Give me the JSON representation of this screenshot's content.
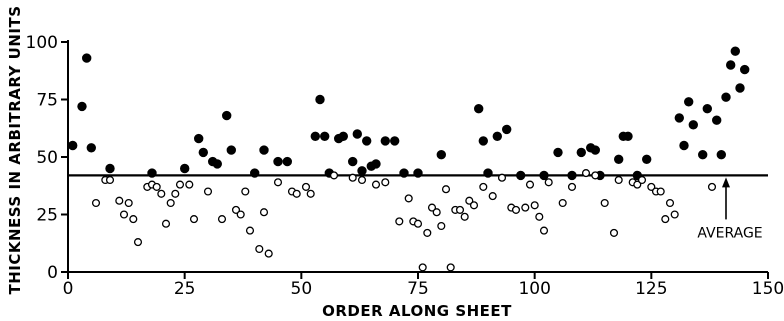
{
  "chart_data": {
    "type": "scatter",
    "title": "",
    "xlabel": "ORDER ALONG SHEET",
    "ylabel": "THICKNESS IN ARBITRARY UNITS",
    "xlim": [
      0,
      150
    ],
    "ylim": [
      0,
      100
    ],
    "x_ticks": [
      0,
      25,
      50,
      75,
      100,
      125,
      150
    ],
    "y_ticks": [
      0,
      25,
      50,
      75,
      100
    ],
    "grid": false,
    "reference_line": {
      "y": 42,
      "label": "AVERAGE"
    },
    "series": [
      {
        "marker": "filled-circle",
        "color": "#000000",
        "points": [
          [
            1,
            55
          ],
          [
            3,
            72
          ],
          [
            4,
            93
          ],
          [
            5,
            54
          ],
          [
            9,
            45
          ],
          [
            18,
            43
          ],
          [
            25,
            45
          ],
          [
            28,
            58
          ],
          [
            29,
            52
          ],
          [
            31,
            48
          ],
          [
            32,
            47
          ],
          [
            34,
            68
          ],
          [
            35,
            53
          ],
          [
            40,
            43
          ],
          [
            42,
            53
          ],
          [
            45,
            48
          ],
          [
            47,
            48
          ],
          [
            53,
            59
          ],
          [
            54,
            75
          ],
          [
            55,
            59
          ],
          [
            56,
            43
          ],
          [
            58,
            58
          ],
          [
            59,
            59
          ],
          [
            61,
            48
          ],
          [
            62,
            60
          ],
          [
            63,
            44
          ],
          [
            64,
            57
          ],
          [
            65,
            46
          ],
          [
            66,
            47
          ],
          [
            68,
            57
          ],
          [
            70,
            57
          ],
          [
            72,
            43
          ],
          [
            75,
            43
          ],
          [
            80,
            51
          ],
          [
            88,
            71
          ],
          [
            89,
            57
          ],
          [
            90,
            43
          ],
          [
            92,
            59
          ],
          [
            94,
            62
          ],
          [
            97,
            42
          ],
          [
            102,
            42
          ],
          [
            105,
            52
          ],
          [
            108,
            42
          ],
          [
            110,
            52
          ],
          [
            112,
            54
          ],
          [
            113,
            53
          ],
          [
            114,
            42
          ],
          [
            118,
            49
          ],
          [
            119,
            59
          ],
          [
            120,
            59
          ],
          [
            122,
            42
          ],
          [
            124,
            49
          ],
          [
            131,
            67
          ],
          [
            132,
            55
          ],
          [
            133,
            74
          ],
          [
            134,
            64
          ],
          [
            136,
            51
          ],
          [
            137,
            71
          ],
          [
            139,
            66
          ],
          [
            140,
            51
          ],
          [
            141,
            76
          ],
          [
            142,
            90
          ],
          [
            143,
            96
          ],
          [
            144,
            80
          ],
          [
            145,
            88
          ]
        ]
      },
      {
        "marker": "open-circle",
        "color": "#000000",
        "points": [
          [
            6,
            30
          ],
          [
            8,
            40
          ],
          [
            9,
            40
          ],
          [
            11,
            31
          ],
          [
            12,
            25
          ],
          [
            13,
            30
          ],
          [
            14,
            23
          ],
          [
            15,
            13
          ],
          [
            17,
            37
          ],
          [
            18,
            38
          ],
          [
            19,
            37
          ],
          [
            20,
            34
          ],
          [
            21,
            21
          ],
          [
            22,
            30
          ],
          [
            23,
            34
          ],
          [
            24,
            38
          ],
          [
            26,
            38
          ],
          [
            27,
            23
          ],
          [
            30,
            35
          ],
          [
            33,
            23
          ],
          [
            36,
            27
          ],
          [
            37,
            25
          ],
          [
            38,
            35
          ],
          [
            39,
            18
          ],
          [
            41,
            10
          ],
          [
            42,
            26
          ],
          [
            43,
            8
          ],
          [
            45,
            39
          ],
          [
            48,
            35
          ],
          [
            49,
            34
          ],
          [
            51,
            37
          ],
          [
            52,
            34
          ],
          [
            57,
            42
          ],
          [
            61,
            41
          ],
          [
            63,
            40
          ],
          [
            66,
            38
          ],
          [
            68,
            39
          ],
          [
            71,
            22
          ],
          [
            73,
            32
          ],
          [
            74,
            22
          ],
          [
            75,
            21
          ],
          [
            76,
            2
          ],
          [
            77,
            17
          ],
          [
            78,
            28
          ],
          [
            79,
            26
          ],
          [
            80,
            20
          ],
          [
            81,
            36
          ],
          [
            82,
            2
          ],
          [
            83,
            27
          ],
          [
            84,
            27
          ],
          [
            85,
            24
          ],
          [
            86,
            31
          ],
          [
            87,
            29
          ],
          [
            89,
            37
          ],
          [
            91,
            33
          ],
          [
            93,
            41
          ],
          [
            95,
            28
          ],
          [
            96,
            27
          ],
          [
            98,
            28
          ],
          [
            99,
            38
          ],
          [
            100,
            29
          ],
          [
            101,
            24
          ],
          [
            102,
            18
          ],
          [
            103,
            39
          ],
          [
            106,
            30
          ],
          [
            108,
            37
          ],
          [
            111,
            43
          ],
          [
            113,
            42
          ],
          [
            115,
            30
          ],
          [
            117,
            17
          ],
          [
            118,
            40
          ],
          [
            121,
            39
          ],
          [
            122,
            38
          ],
          [
            123,
            40
          ],
          [
            125,
            37
          ],
          [
            126,
            35
          ],
          [
            127,
            35
          ],
          [
            128,
            23
          ],
          [
            129,
            30
          ],
          [
            130,
            25
          ],
          [
            138,
            37
          ]
        ]
      }
    ]
  }
}
